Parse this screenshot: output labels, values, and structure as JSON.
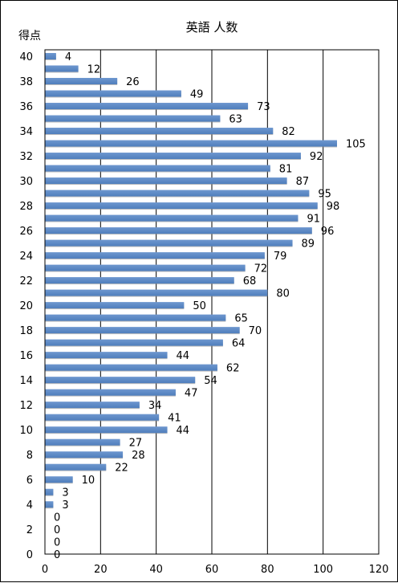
{
  "chart_data": {
    "type": "bar",
    "orientation": "horizontal",
    "title": "英語 人数",
    "ylabel": "得点",
    "xlabel": "",
    "xlim": [
      0,
      120
    ],
    "x_ticks": [
      0,
      20,
      40,
      60,
      80,
      100,
      120
    ],
    "y_tick_labels": [
      "40",
      "38",
      "36",
      "34",
      "32",
      "30",
      "28",
      "26",
      "24",
      "22",
      "20",
      "18",
      "16",
      "14",
      "12",
      "10",
      "8",
      "6",
      "4",
      "2",
      "0"
    ],
    "grid": "vertical",
    "bar_color": "#4f7ebc",
    "categories": [
      40,
      39,
      38,
      37,
      36,
      35,
      34,
      33,
      32,
      31,
      30,
      29,
      28,
      27,
      26,
      25,
      24,
      23,
      22,
      21,
      20,
      19,
      18,
      17,
      16,
      15,
      14,
      13,
      12,
      11,
      10,
      9,
      8,
      7,
      6,
      5,
      4,
      3,
      2,
      1,
      0
    ],
    "values": [
      4,
      12,
      26,
      49,
      73,
      63,
      82,
      105,
      92,
      81,
      87,
      95,
      98,
      91,
      96,
      89,
      79,
      72,
      68,
      80,
      50,
      65,
      70,
      64,
      44,
      62,
      54,
      47,
      34,
      41,
      44,
      27,
      28,
      22,
      10,
      3,
      3,
      0,
      0,
      0,
      0
    ]
  }
}
